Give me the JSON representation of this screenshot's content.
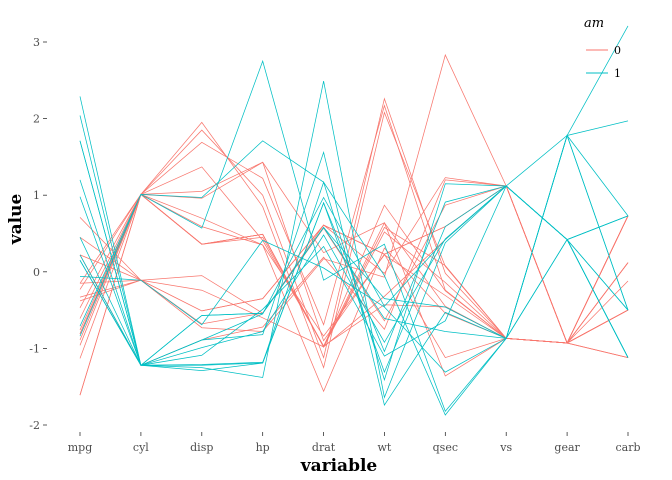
{
  "chart_data": {
    "type": "line",
    "xlabel": "variable",
    "ylabel": "value",
    "categories": [
      "mpg",
      "cyl",
      "disp",
      "hp",
      "drat",
      "wt",
      "qsec",
      "vs",
      "gear",
      "carb"
    ],
    "ylim": [
      -2.05,
      3.3
    ],
    "yticks": [
      -2,
      -1,
      0,
      1,
      2,
      3
    ],
    "yticklabels": [
      "-2",
      "-1",
      "0",
      "1",
      "2",
      "3"
    ],
    "grid": false,
    "legend": {
      "title": "am",
      "position": "top-right",
      "entries": [
        {
          "label": "0",
          "color": "#F8766D"
        },
        {
          "label": "1",
          "color": "#00BFC4"
        }
      ]
    },
    "series": [
      {
        "group": "0",
        "values": [
          0.22,
          -0.11,
          -0.05,
          -0.54,
          0.57,
          -0.64,
          0.87,
          1.12,
          -0.93,
          -1.12
        ]
      },
      {
        "group": "0",
        "values": [
          -0.23,
          1.01,
          0.36,
          0.45,
          -0.97,
          -0.43,
          -0.46,
          -0.87,
          -0.93,
          -0.5
        ]
      },
      {
        "group": "0",
        "values": [
          -0.33,
          -0.11,
          -0.24,
          -0.6,
          -0.98,
          -0.32,
          0.42,
          1.12,
          -0.93,
          -0.12
        ]
      },
      {
        "group": "0",
        "values": [
          -0.96,
          1.01,
          1.05,
          1.43,
          -0.9,
          0.23,
          -1.12,
          -0.87,
          -0.93,
          0.73
        ]
      },
      {
        "group": "0",
        "values": [
          0.71,
          -0.11,
          -0.68,
          -0.54,
          0.61,
          -0.02,
          1.23,
          1.12,
          -0.93,
          -0.5
        ]
      },
      {
        "group": "0",
        "values": [
          0.45,
          -0.11,
          -0.73,
          -0.78,
          0.17,
          -0.07,
          2.83,
          1.12,
          -0.93,
          -0.5
        ]
      },
      {
        "group": "0",
        "values": [
          -0.15,
          -0.11,
          -0.51,
          -0.35,
          0.61,
          0.23,
          0.59,
          1.12,
          -0.93,
          0.73
        ]
      },
      {
        "group": "0",
        "values": [
          -0.38,
          -0.11,
          -0.51,
          -0.35,
          0.61,
          0.23,
          0.59,
          1.12,
          -0.93,
          0.73
        ]
      },
      {
        "group": "0",
        "values": [
          -0.61,
          1.01,
          0.36,
          0.49,
          -0.98,
          0.87,
          -0.25,
          -0.87,
          -0.93,
          0.12
        ]
      },
      {
        "group": "0",
        "values": [
          -0.47,
          1.01,
          0.36,
          0.49,
          -0.98,
          0.52,
          -0.14,
          -0.87,
          -0.93,
          0.12
        ]
      },
      {
        "group": "0",
        "values": [
          -0.81,
          1.01,
          0.36,
          0.49,
          -0.98,
          0.58,
          0.08,
          -0.87,
          -0.93,
          0.12
        ]
      },
      {
        "group": "0",
        "values": [
          -1.61,
          1.01,
          1.95,
          0.85,
          -1.25,
          2.08,
          0.07,
          -0.87,
          -0.93,
          0.73
        ]
      },
      {
        "group": "0",
        "values": [
          -1.61,
          1.01,
          1.85,
          1.0,
          -1.12,
          2.26,
          -0.02,
          -0.87,
          -0.93,
          0.73
        ]
      },
      {
        "group": "0",
        "values": [
          -0.89,
          1.01,
          1.69,
          1.22,
          -0.69,
          2.17,
          -0.24,
          -0.87,
          -0.93,
          0.73
        ]
      },
      {
        "group": "0",
        "values": [
          0.22,
          -1.22,
          -0.89,
          -0.72,
          0.19,
          -0.75,
          1.2,
          1.12,
          -0.93,
          -1.12
        ]
      },
      {
        "group": "0",
        "values": [
          -0.76,
          1.01,
          0.7,
          0.35,
          -1.56,
          0.31,
          -0.54,
          -0.87,
          -0.93,
          -0.5
        ]
      },
      {
        "group": "0",
        "values": [
          -0.81,
          1.01,
          0.59,
          0.35,
          -0.84,
          0.22,
          -0.31,
          -0.87,
          -0.93,
          -0.5
        ]
      },
      {
        "group": "0",
        "values": [
          -1.13,
          1.01,
          0.96,
          1.43,
          0.25,
          0.64,
          -1.36,
          -0.87,
          -0.93,
          0.73
        ]
      },
      {
        "group": "0",
        "values": [
          -0.15,
          1.01,
          1.37,
          0.41,
          -0.97,
          0.64,
          -0.45,
          -0.87,
          -0.93,
          -0.5
        ]
      },
      {
        "group": "1",
        "values": [
          0.15,
          -1.22,
          -0.57,
          -0.54,
          0.58,
          -0.61,
          -0.78,
          -0.87,
          0.42,
          0.73
        ]
      },
      {
        "group": "1",
        "values": [
          0.15,
          -1.22,
          -0.57,
          -0.54,
          0.58,
          -0.35,
          -0.46,
          -0.87,
          0.42,
          0.73
        ]
      },
      {
        "group": "1",
        "values": [
          0.45,
          -1.22,
          -0.99,
          -0.78,
          0.48,
          -0.92,
          0.43,
          1.12,
          0.42,
          -1.12
        ]
      },
      {
        "group": "1",
        "values": [
          2.04,
          -1.22,
          -1.21,
          -1.18,
          0.9,
          -1.04,
          0.91,
          1.12,
          0.42,
          -1.12
        ]
      },
      {
        "group": "1",
        "values": [
          1.71,
          -1.22,
          -1.25,
          -1.38,
          2.49,
          -1.64,
          0.38,
          1.12,
          0.42,
          -0.5
        ]
      },
      {
        "group": "1",
        "values": [
          2.29,
          -1.22,
          -1.29,
          -1.19,
          1.17,
          -1.41,
          1.15,
          1.12,
          0.42,
          -1.12
        ]
      },
      {
        "group": "1",
        "values": [
          1.2,
          -1.22,
          -1.22,
          -1.19,
          0.9,
          -1.31,
          0.59,
          1.12,
          0.42,
          -1.12
        ]
      },
      {
        "group": "1",
        "values": [
          0.98,
          -1.22,
          -0.89,
          -0.82,
          1.56,
          -1.74,
          -0.53,
          -0.87,
          1.78,
          -0.5
        ]
      },
      {
        "group": "1",
        "values": [
          1.71,
          -1.22,
          -1.09,
          -0.49,
          0.33,
          -1.1,
          -0.64,
          1.12,
          1.78,
          -0.5
        ]
      },
      {
        "group": "1",
        "values": [
          -0.71,
          1.01,
          0.97,
          1.71,
          1.17,
          -0.05,
          -1.87,
          -0.87,
          1.78,
          0.73
        ]
      },
      {
        "group": "1",
        "values": [
          -0.06,
          -0.11,
          -0.69,
          0.41,
          0.05,
          -0.46,
          -1.31,
          -0.87,
          1.78,
          1.97
        ]
      },
      {
        "group": "1",
        "values": [
          -0.84,
          1.01,
          0.57,
          2.75,
          -0.11,
          0.36,
          -1.82,
          -0.87,
          1.78,
          3.21
        ]
      },
      {
        "group": "1",
        "values": [
          0.22,
          -1.22,
          -0.89,
          -0.55,
          0.97,
          -0.45,
          0.42,
          1.12,
          0.42,
          -0.5
        ]
      }
    ]
  }
}
